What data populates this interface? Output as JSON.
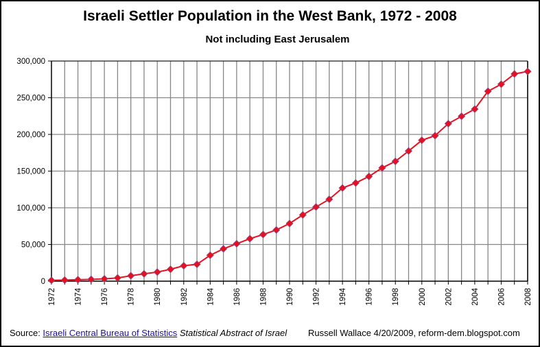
{
  "chart_data": {
    "type": "line",
    "title": "Israeli Settler Population in the West Bank, 1972 - 2008",
    "subtitle": "Not including East Jerusalem",
    "xlabel": "",
    "ylabel": "",
    "ylim": [
      0,
      300000
    ],
    "y_ticks": [
      "0",
      "50,000",
      "100,000",
      "150,000",
      "200,000",
      "250,000",
      "300,000"
    ],
    "x_tick_labels": [
      "1972",
      "1974",
      "1976",
      "1978",
      "1980",
      "1982",
      "1984",
      "1986",
      "1988",
      "1990",
      "1992",
      "1994",
      "1996",
      "1998",
      "2000",
      "2002",
      "2004",
      "2006",
      "2008"
    ],
    "grid": true,
    "legend": "none",
    "series_color": "#e8101e",
    "x": [
      1972,
      1973,
      1974,
      1975,
      1976,
      1977,
      1978,
      1979,
      1980,
      1981,
      1982,
      1983,
      1984,
      1985,
      1986,
      1987,
      1988,
      1989,
      1990,
      1991,
      1992,
      1993,
      1994,
      1995,
      1996,
      1997,
      1998,
      1999,
      2000,
      2001,
      2002,
      2003,
      2004,
      2005,
      2006,
      2007,
      2008
    ],
    "values": [
      1200,
      1500,
      2000,
      2500,
      3200,
      4400,
      7400,
      10000,
      12400,
      16200,
      21000,
      23000,
      35300,
      44100,
      51000,
      57900,
      63600,
      69800,
      78600,
      90300,
      101100,
      111600,
      127000,
      133800,
      142700,
      154400,
      163300,
      177400,
      192000,
      198300,
      214700,
      224700,
      234500,
      258800,
      268400,
      282400,
      285800
    ]
  },
  "footer": {
    "source_prefix": "Source: ",
    "source_link": "Israeli Central Bureau of Statistics",
    "source_publication": "Statistical Abstract of Israel",
    "credit": "Russell Wallace 4/20/2009,  reform-dem.blogspot.com"
  }
}
